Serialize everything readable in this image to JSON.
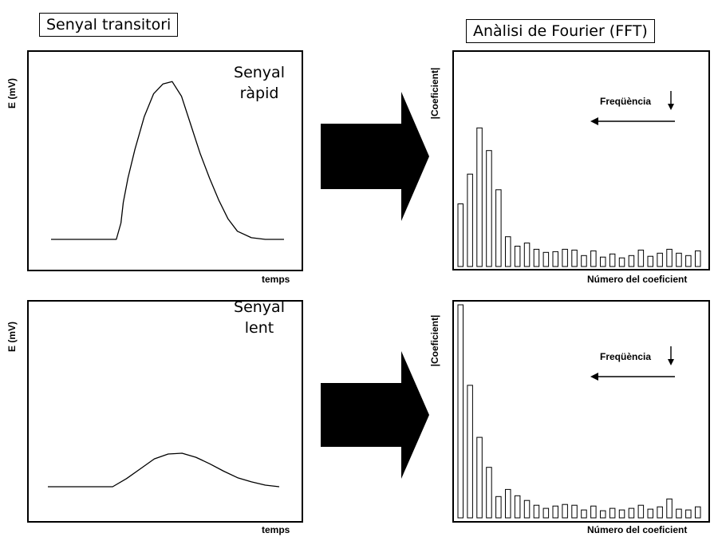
{
  "left_title": "Senyal transitori",
  "right_title": "Anàlisi de Fourier (FFT)",
  "signals": [
    {
      "label_line1": "Senyal",
      "label_line2": "ràpid",
      "ylabel": "E (mV)",
      "xlabel": "temps"
    },
    {
      "label_line1": "Senyal",
      "label_line2": "lent",
      "ylabel": "E (mV)",
      "xlabel": "temps"
    }
  ],
  "spectra": [
    {
      "ylabel": "|Coeficient|",
      "xlabel": "Número del coeficient",
      "freq_label": "Freqüència"
    },
    {
      "ylabel": "|Coeficient|",
      "xlabel": "Número del coeficient",
      "freq_label": "Freqüència"
    }
  ],
  "chart_data": [
    {
      "type": "line",
      "note_series": "fast transient signal",
      "x": [
        0,
        10,
        20,
        28,
        30,
        31,
        33,
        36,
        40,
        44,
        48,
        52,
        56,
        60,
        64,
        68,
        72,
        76,
        80,
        86,
        92,
        100
      ],
      "y": [
        0,
        0,
        0,
        0,
        20,
        45,
        75,
        110,
        150,
        178,
        190,
        193,
        175,
        140,
        105,
        75,
        48,
        25,
        10,
        2,
        0,
        0
      ],
      "ylim": [
        0,
        200
      ]
    },
    {
      "type": "line",
      "note_series": "slow transient signal",
      "x": [
        0,
        10,
        20,
        28,
        34,
        40,
        46,
        52,
        58,
        64,
        70,
        76,
        82,
        88,
        94,
        100
      ],
      "y": [
        0,
        0,
        0,
        0,
        10,
        22,
        34,
        40,
        41,
        36,
        28,
        19,
        11,
        6,
        2,
        0
      ],
      "ylim": [
        0,
        200
      ]
    },
    {
      "type": "bar",
      "values": [
        80,
        118,
        177,
        148,
        98,
        38,
        26,
        30,
        22,
        18,
        19,
        22,
        21,
        14,
        20,
        12,
        16,
        11,
        14,
        21,
        13,
        17,
        22,
        17,
        14,
        20
      ],
      "ylim": [
        0,
        270
      ]
    },
    {
      "type": "bar",
      "values": [
        270,
        168,
        102,
        64,
        27,
        36,
        28,
        22,
        16,
        12,
        15,
        17,
        16,
        10,
        15,
        9,
        12,
        10,
        12,
        16,
        11,
        14,
        24,
        11,
        10,
        14
      ],
      "ylim": [
        0,
        270
      ]
    }
  ]
}
